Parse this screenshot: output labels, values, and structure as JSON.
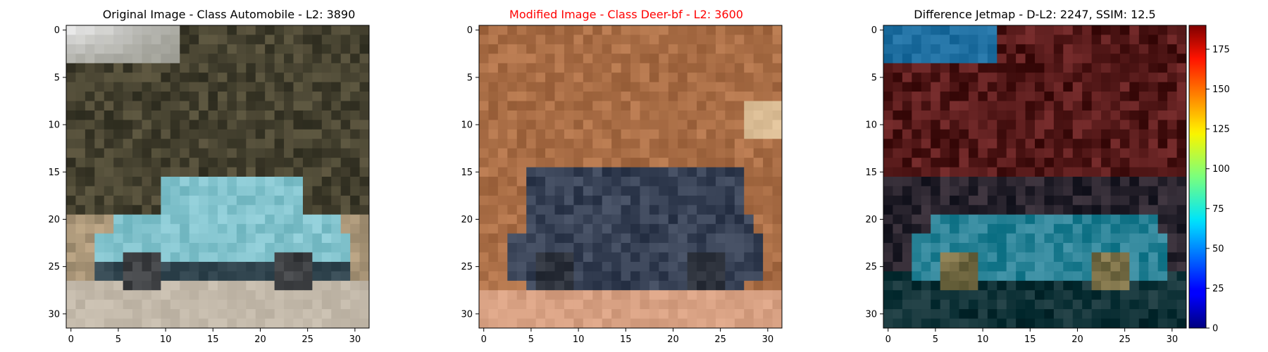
{
  "panels": [
    {
      "id": "original",
      "title": "Original Image - Class Automobile - L2: 3890",
      "title_color": "#000000",
      "x_ticks": [
        "0",
        "5",
        "10",
        "15",
        "20",
        "25",
        "30"
      ],
      "y_ticks": [
        "0",
        "5",
        "10",
        "15",
        "20",
        "25",
        "30"
      ]
    },
    {
      "id": "modified",
      "title": "Modified Image - Class Deer-bf - L2: 3600",
      "title_color": "#ff0000",
      "x_ticks": [
        "0",
        "5",
        "10",
        "15",
        "20",
        "25",
        "30"
      ],
      "y_ticks": [
        "0",
        "5",
        "10",
        "15",
        "20",
        "25",
        "30"
      ]
    },
    {
      "id": "difference",
      "title": "Difference Jetmap - D-L2: 2247, SSIM: 12.5",
      "title_color": "#000000",
      "x_ticks": [
        "0",
        "5",
        "10",
        "15",
        "20",
        "25",
        "30"
      ],
      "y_ticks": [
        "0",
        "5",
        "10",
        "15",
        "20",
        "25",
        "30"
      ]
    }
  ],
  "colorbar": {
    "colormap": "jet",
    "range": [
      0,
      190
    ],
    "ticks": [
      "0",
      "25",
      "50",
      "75",
      "100",
      "125",
      "150",
      "175"
    ]
  }
}
